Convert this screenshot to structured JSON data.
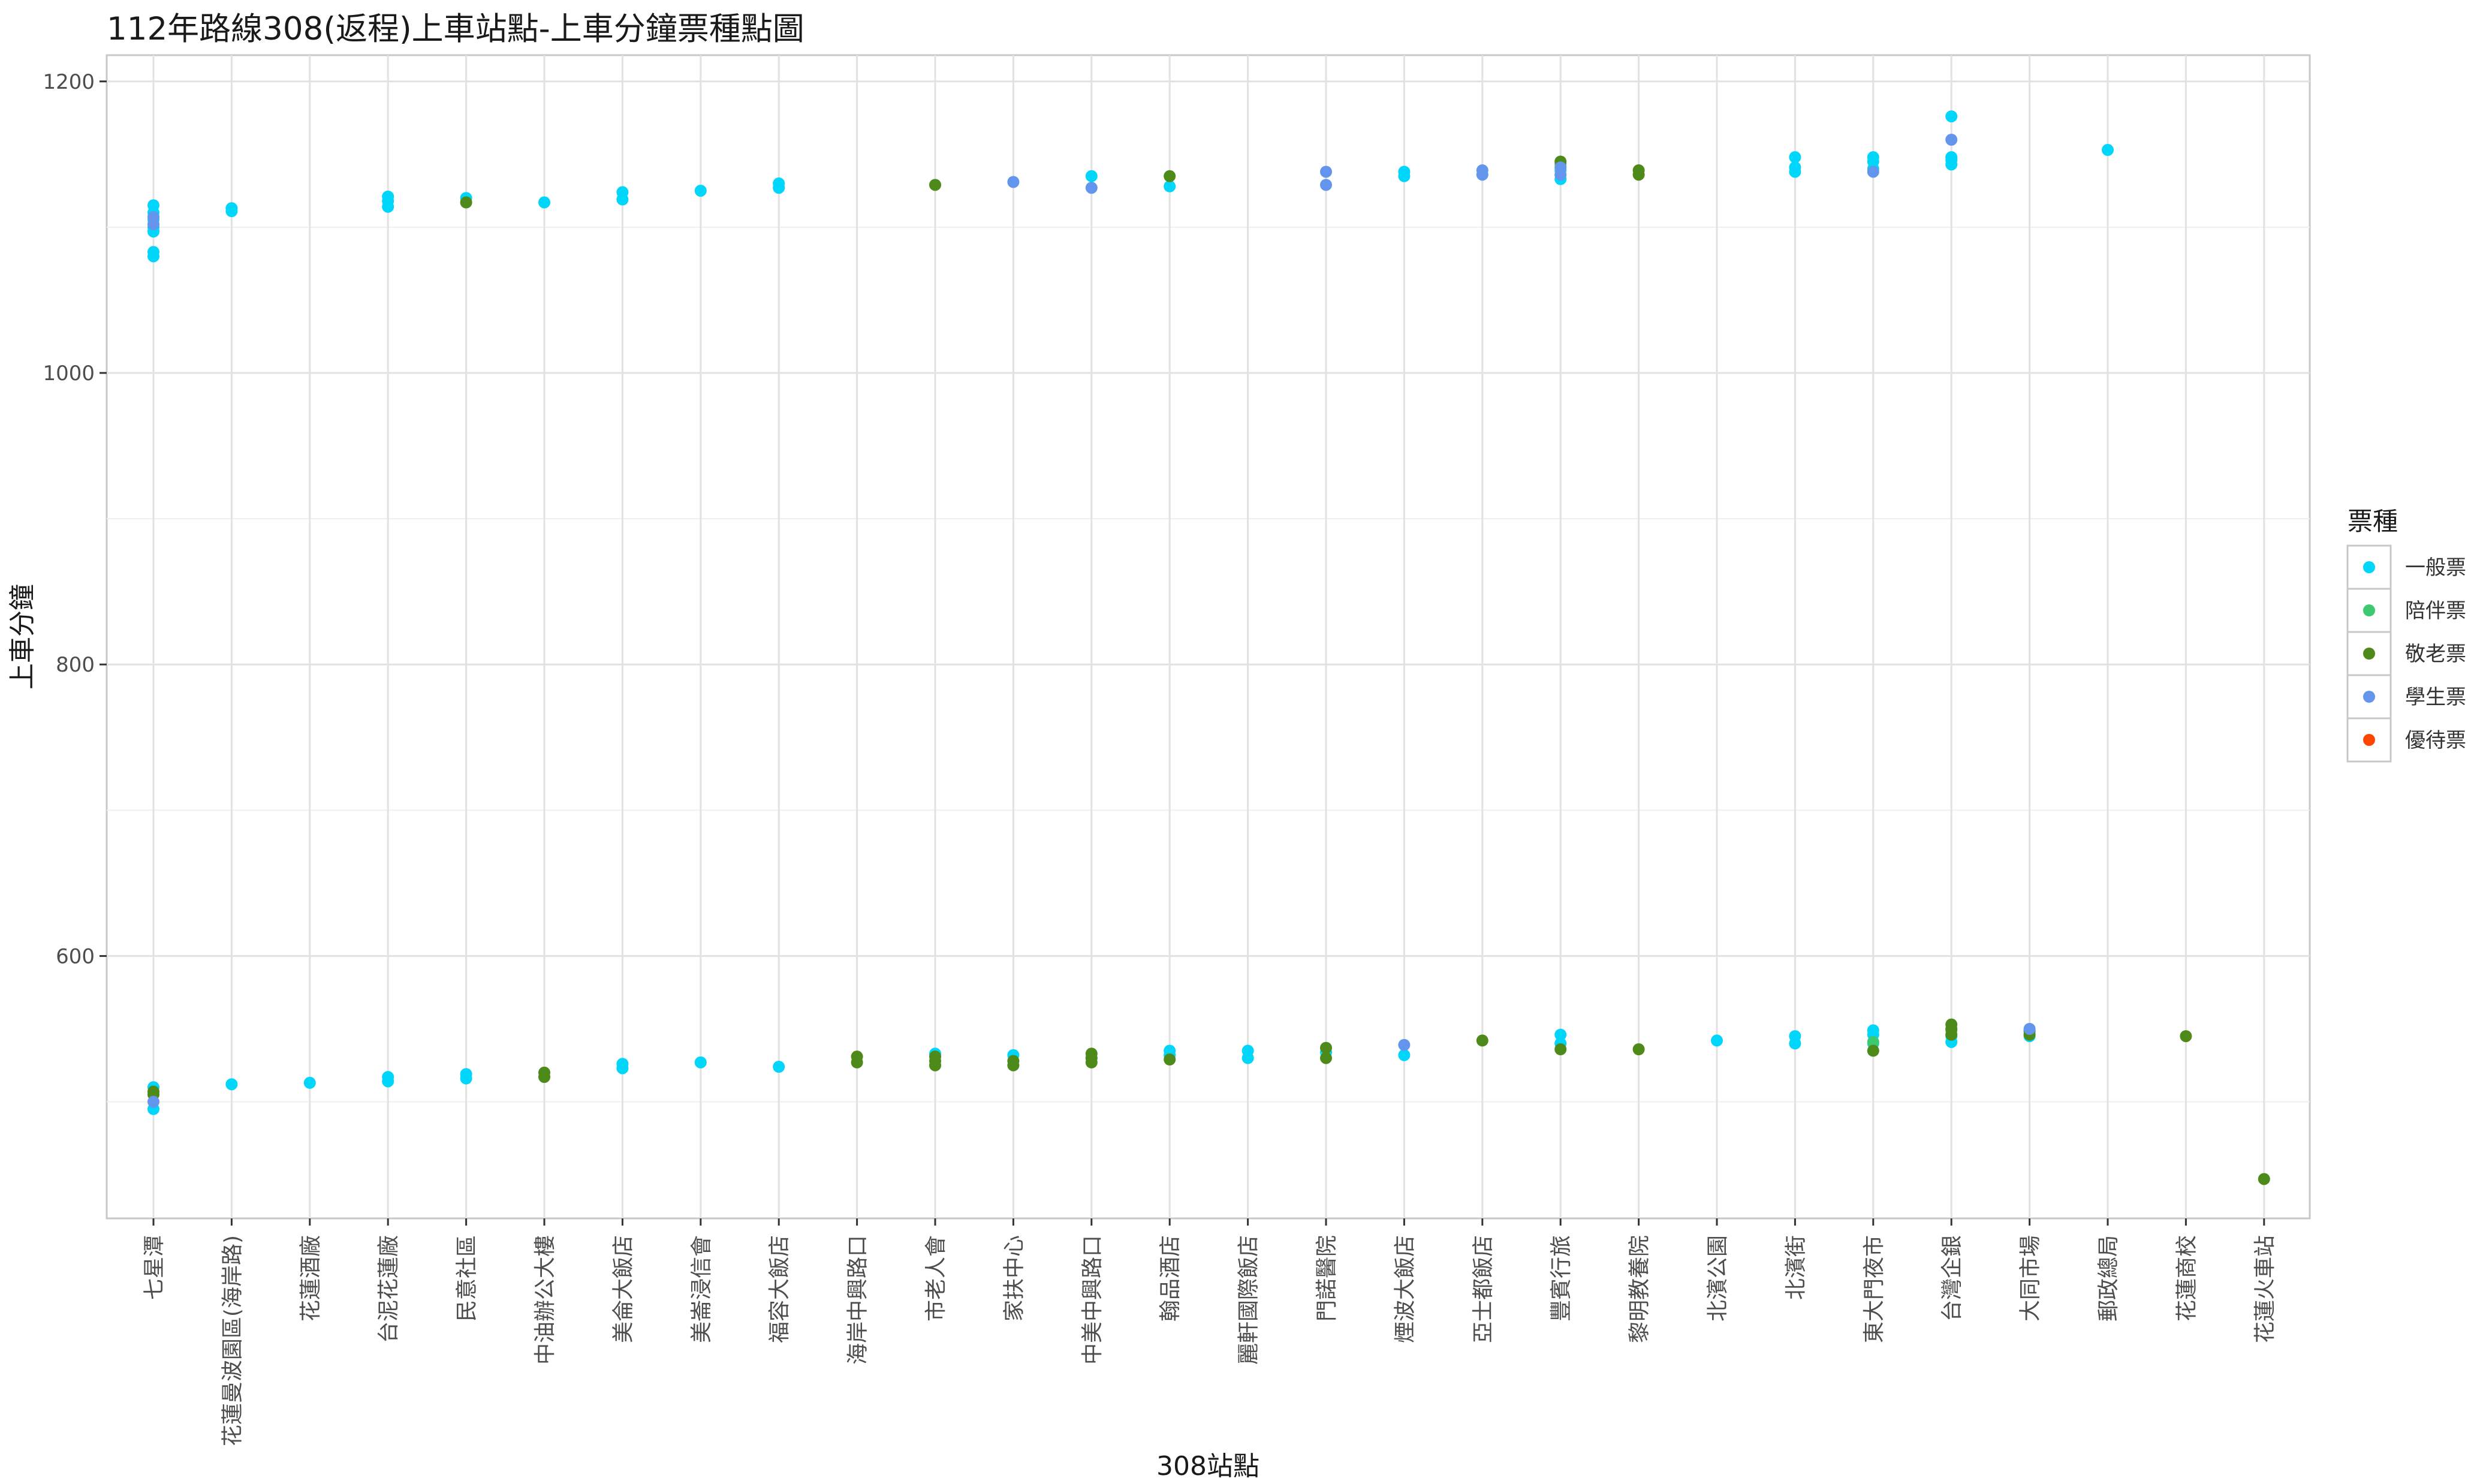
{
  "chart_data": {
    "type": "scatter",
    "title": "112年路線308(返程)上車站點-上車分鐘票種點圖",
    "xlabel": "308站點",
    "ylabel": "上車分鐘",
    "y_ticks": [
      600,
      800,
      1000,
      1200
    ],
    "ylim": [
      420,
      1218
    ],
    "grid": true,
    "legend_position": "right",
    "legend_title": "票種",
    "categories": [
      "七星潭",
      "花蓮曼波園區(海岸路)",
      "花蓮酒廠",
      "台泥花蓮廠",
      "民意社區",
      "中油辦公大樓",
      "美侖大飯店",
      "美崙浸信會",
      "福容大飯店",
      "海岸中興路口",
      "市老人會",
      "家扶中心",
      "中美中興路口",
      "翰品酒店",
      "麗軒國際飯店",
      "門諾醫院",
      "煙波大飯店",
      "亞士都飯店",
      "豐賓行旅",
      "黎明教養院",
      "北濱公園",
      "北濱街",
      "東大門夜市",
      "台灣企銀",
      "大同市場",
      "郵政總局",
      "花蓮商校",
      "花蓮火車站"
    ],
    "series": [
      {
        "name": "一般票",
        "color": "#00D5FA",
        "points": [
          [
            "七星潭",
            1115
          ],
          [
            "七星潭",
            1110
          ],
          [
            "七星潭",
            1105
          ],
          [
            "七星潭",
            1100
          ],
          [
            "七星潭",
            1097
          ],
          [
            "七星潭",
            1083
          ],
          [
            "七星潭",
            1080
          ],
          [
            "七星潭",
            510
          ],
          [
            "七星潭",
            495
          ],
          [
            "花蓮曼波園區(海岸路)",
            1113
          ],
          [
            "花蓮曼波園區(海岸路)",
            1111
          ],
          [
            "花蓮曼波園區(海岸路)",
            512
          ],
          [
            "花蓮酒廠",
            513
          ],
          [
            "台泥花蓮廠",
            1121
          ],
          [
            "台泥花蓮廠",
            1118
          ],
          [
            "台泥花蓮廠",
            1114
          ],
          [
            "台泥花蓮廠",
            517
          ],
          [
            "台泥花蓮廠",
            514
          ],
          [
            "民意社區",
            1120
          ],
          [
            "民意社區",
            519
          ],
          [
            "民意社區",
            516
          ],
          [
            "中油辦公大樓",
            1117
          ],
          [
            "美侖大飯店",
            1124
          ],
          [
            "美侖大飯店",
            1119
          ],
          [
            "美侖大飯店",
            526
          ],
          [
            "美侖大飯店",
            523
          ],
          [
            "美崙浸信會",
            1125
          ],
          [
            "美崙浸信會",
            527
          ],
          [
            "福容大飯店",
            1130
          ],
          [
            "福容大飯店",
            1127
          ],
          [
            "福容大飯店",
            524
          ],
          [
            "市老人會",
            533
          ],
          [
            "家扶中心",
            532
          ],
          [
            "中美中興路口",
            1135
          ],
          [
            "中美中興路口",
            530
          ],
          [
            "翰品酒店",
            1128
          ],
          [
            "翰品酒店",
            535
          ],
          [
            "翰品酒店",
            532
          ],
          [
            "麗軒國際飯店",
            535
          ],
          [
            "麗軒國際飯店",
            530
          ],
          [
            "門諾醫院",
            534
          ],
          [
            "煙波大飯店",
            1138
          ],
          [
            "煙波大飯店",
            1135
          ],
          [
            "煙波大飯店",
            532
          ],
          [
            "豐賓行旅",
            1139
          ],
          [
            "豐賓行旅",
            1133
          ],
          [
            "豐賓行旅",
            546
          ],
          [
            "豐賓行旅",
            540
          ],
          [
            "北濱公園",
            542
          ],
          [
            "北濱街",
            1148
          ],
          [
            "北濱街",
            1141
          ],
          [
            "北濱街",
            1138
          ],
          [
            "北濱街",
            545
          ],
          [
            "北濱街",
            540
          ],
          [
            "東大門夜市",
            1148
          ],
          [
            "東大門夜市",
            1145
          ],
          [
            "東大門夜市",
            1140
          ],
          [
            "東大門夜市",
            549
          ],
          [
            "東大門夜市",
            546
          ],
          [
            "東大門夜市",
            540
          ],
          [
            "台灣企銀",
            1176
          ],
          [
            "台灣企銀",
            1148
          ],
          [
            "台灣企銀",
            1146
          ],
          [
            "台灣企銀",
            1143
          ],
          [
            "台灣企銀",
            545
          ],
          [
            "台灣企銀",
            541
          ],
          [
            "大同市場",
            548
          ],
          [
            "大同市場",
            545
          ],
          [
            "郵政總局",
            1153
          ]
        ]
      },
      {
        "name": "陪伴票",
        "color": "#3DC970",
        "points": [
          [
            "民意社區",
            1117
          ],
          [
            "豐賓行旅",
            1143
          ],
          [
            "東大門夜市",
            541
          ],
          [
            "台灣企銀",
            549
          ]
        ]
      },
      {
        "name": "敬老票",
        "color": "#4D8A19",
        "points": [
          [
            "七星潭",
            507
          ],
          [
            "七星潭",
            505
          ],
          [
            "民意社區",
            1117
          ],
          [
            "中油辦公大樓",
            520
          ],
          [
            "中油辦公大樓",
            517
          ],
          [
            "海岸中興路口",
            531
          ],
          [
            "海岸中興路口",
            527
          ],
          [
            "市老人會",
            1129
          ],
          [
            "市老人會",
            531
          ],
          [
            "市老人會",
            528
          ],
          [
            "市老人會",
            525
          ],
          [
            "家扶中心",
            528
          ],
          [
            "家扶中心",
            525
          ],
          [
            "中美中興路口",
            533
          ],
          [
            "中美中興路口",
            530
          ],
          [
            "中美中興路口",
            527
          ],
          [
            "翰品酒店",
            1135
          ],
          [
            "翰品酒店",
            529
          ],
          [
            "門諾醫院",
            537
          ],
          [
            "門諾醫院",
            530
          ],
          [
            "亞士都飯店",
            542
          ],
          [
            "豐賓行旅",
            1145
          ],
          [
            "豐賓行旅",
            536
          ],
          [
            "黎明教養院",
            1139
          ],
          [
            "黎明教養院",
            1136
          ],
          [
            "黎明教養院",
            536
          ],
          [
            "東大門夜市",
            535
          ],
          [
            "台灣企銀",
            553
          ],
          [
            "台灣企銀",
            550
          ],
          [
            "台灣企銀",
            546
          ],
          [
            "大同市場",
            549
          ],
          [
            "大同市場",
            546
          ],
          [
            "花蓮商校",
            545
          ],
          [
            "花蓮火車站",
            447
          ]
        ]
      },
      {
        "name": "學生票",
        "color": "#6495ED",
        "points": [
          [
            "七星潭",
            1107
          ],
          [
            "七星潭",
            1102
          ],
          [
            "七星潭",
            500
          ],
          [
            "家扶中心",
            1131
          ],
          [
            "中美中興路口",
            1127
          ],
          [
            "門諾醫院",
            1138
          ],
          [
            "門諾醫院",
            1129
          ],
          [
            "煙波大飯店",
            539
          ],
          [
            "亞士都飯店",
            1139
          ],
          [
            "亞士都飯店",
            1136
          ],
          [
            "豐賓行旅",
            1141
          ],
          [
            "豐賓行旅",
            1136
          ],
          [
            "東大門夜市",
            1138
          ],
          [
            "台灣企銀",
            1160
          ],
          [
            "大同市場",
            550
          ]
        ]
      },
      {
        "name": "優待票",
        "color": "#FF4500",
        "points": []
      }
    ]
  }
}
